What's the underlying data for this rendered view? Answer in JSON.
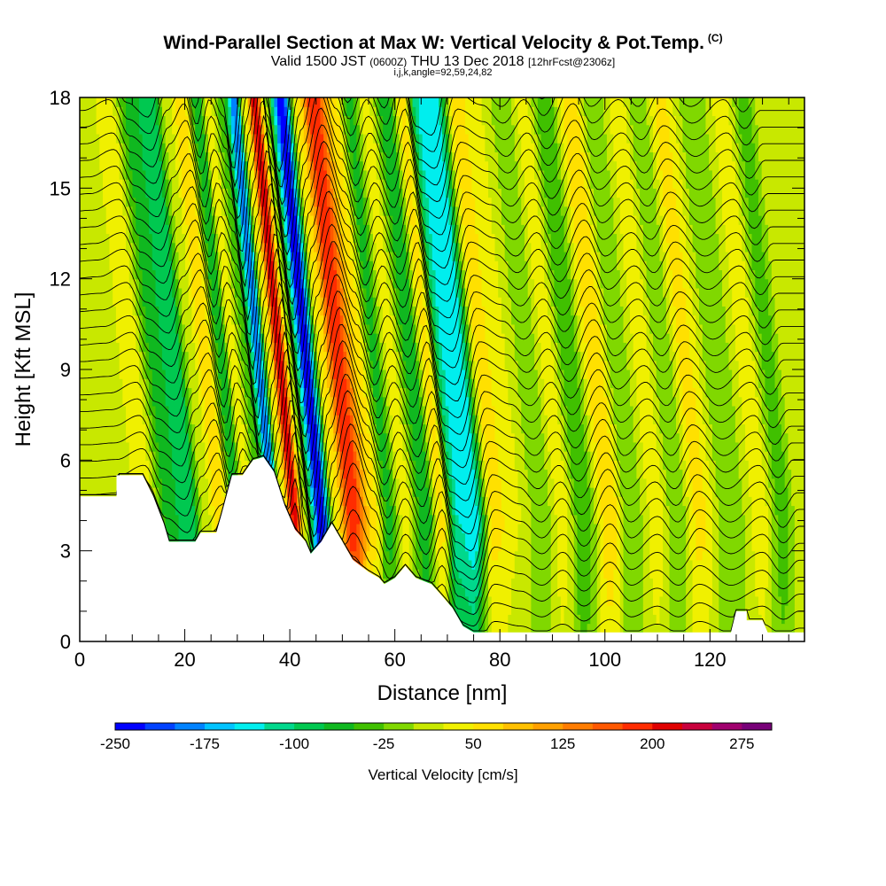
{
  "header": {
    "title": "Wind-Parallel Section at Max W: Vertical Velocity & Pot.Temp.",
    "copyright_mark": "(C)",
    "valid_prefix": "Valid 1500 JST",
    "valid_utc": "(0600Z)",
    "valid_date": "THU 13 Dec 2018",
    "forecast_info": "[12hrFcst@2306z]",
    "ijk_line": "i,j,k,angle=92,59,24,82"
  },
  "chart_data": {
    "type": "heatmap",
    "xlabel": "Distance [nm]",
    "ylabel": "Height [Kft MSL]",
    "xlim": [
      0,
      138
    ],
    "ylim": [
      0,
      18
    ],
    "x_ticks": [
      0,
      20,
      40,
      60,
      80,
      100,
      120
    ],
    "y_ticks": [
      0,
      3,
      6,
      9,
      12,
      15,
      18
    ],
    "colorbar": {
      "title": "Vertical Velocity [cm/s]",
      "min": -250,
      "max": 300,
      "step": 25,
      "labels": [
        "-250",
        "-175",
        "-100",
        "-25",
        "50",
        "125",
        "200",
        "275"
      ],
      "colors": [
        "#0000ff",
        "#0041ff",
        "#0082ff",
        "#00c3ff",
        "#00eeee",
        "#00d88c",
        "#00c850",
        "#10b820",
        "#40c000",
        "#80d800",
        "#c8e800",
        "#f0f000",
        "#ffe000",
        "#ffc000",
        "#ffa000",
        "#ff7c00",
        "#ff5800",
        "#ff2c00",
        "#e00000",
        "#c8003c",
        "#a0006e",
        "#780078"
      ]
    },
    "vertical_velocity_columns": [
      {
        "x": 3,
        "w": 5
      },
      {
        "x": 8,
        "w": 10
      },
      {
        "x": 13,
        "w": 40
      },
      {
        "x": 17,
        "w": -60
      },
      {
        "x": 21,
        "w": -100
      },
      {
        "x": 24,
        "w": 10
      },
      {
        "x": 27,
        "w": 75
      },
      {
        "x": 30,
        "w": -75
      },
      {
        "x": 32,
        "w": 40
      },
      {
        "x": 35,
        "w": -50
      },
      {
        "x": 37,
        "w": -200
      },
      {
        "x": 39,
        "w": 40
      },
      {
        "x": 41,
        "w": 225
      },
      {
        "x": 43,
        "w": 0
      },
      {
        "x": 46,
        "w": -250
      },
      {
        "x": 49,
        "w": 50
      },
      {
        "x": 52,
        "w": 200
      },
      {
        "x": 56,
        "w": 60
      },
      {
        "x": 59,
        "w": -60
      },
      {
        "x": 62,
        "w": 40
      },
      {
        "x": 66,
        "w": -75
      },
      {
        "x": 69,
        "w": 60
      },
      {
        "x": 72,
        "w": -125
      },
      {
        "x": 75,
        "w": -150
      },
      {
        "x": 79,
        "w": 60
      },
      {
        "x": 84,
        "w": 25
      },
      {
        "x": 88,
        "w": -25
      },
      {
        "x": 92,
        "w": 40
      },
      {
        "x": 96,
        "w": -50
      },
      {
        "x": 101,
        "w": 75
      },
      {
        "x": 105,
        "w": -25
      },
      {
        "x": 110,
        "w": 40
      },
      {
        "x": 114,
        "w": -25
      },
      {
        "x": 118,
        "w": 60
      },
      {
        "x": 124,
        "w": -25
      },
      {
        "x": 130,
        "w": 40
      },
      {
        "x": 134,
        "w": -40
      },
      {
        "x": 137,
        "w": 10
      }
    ],
    "terrain_height_kft": [
      {
        "x": 0,
        "h": 4.8
      },
      {
        "x": 7,
        "h": 4.8
      },
      {
        "x": 7,
        "h": 5.5
      },
      {
        "x": 12,
        "h": 5.5
      },
      {
        "x": 14,
        "h": 4.8
      },
      {
        "x": 16,
        "h": 3.9
      },
      {
        "x": 17,
        "h": 3.3
      },
      {
        "x": 22,
        "h": 3.3
      },
      {
        "x": 23,
        "h": 3.6
      },
      {
        "x": 26,
        "h": 3.6
      },
      {
        "x": 27,
        "h": 4.2
      },
      {
        "x": 29,
        "h": 5.5
      },
      {
        "x": 31,
        "h": 5.5
      },
      {
        "x": 33,
        "h": 6.0
      },
      {
        "x": 35,
        "h": 6.1
      },
      {
        "x": 37,
        "h": 5.6
      },
      {
        "x": 39,
        "h": 4.5
      },
      {
        "x": 41,
        "h": 3.7
      },
      {
        "x": 43,
        "h": 3.3
      },
      {
        "x": 44,
        "h": 2.9
      },
      {
        "x": 46,
        "h": 3.3
      },
      {
        "x": 48,
        "h": 3.9
      },
      {
        "x": 50,
        "h": 3.3
      },
      {
        "x": 52,
        "h": 2.7
      },
      {
        "x": 55,
        "h": 2.3
      },
      {
        "x": 57,
        "h": 2.1
      },
      {
        "x": 58,
        "h": 1.9
      },
      {
        "x": 60,
        "h": 2.1
      },
      {
        "x": 62,
        "h": 2.5
      },
      {
        "x": 64,
        "h": 2.1
      },
      {
        "x": 67,
        "h": 1.9
      },
      {
        "x": 69,
        "h": 1.5
      },
      {
        "x": 71,
        "h": 1.1
      },
      {
        "x": 73,
        "h": 0.5
      },
      {
        "x": 75,
        "h": 0.3
      },
      {
        "x": 124,
        "h": 0.3
      },
      {
        "x": 125,
        "h": 1.0
      },
      {
        "x": 127,
        "h": 1.0
      },
      {
        "x": 127,
        "h": 0.7
      },
      {
        "x": 130,
        "h": 0.7
      },
      {
        "x": 131,
        "h": 0.3
      },
      {
        "x": 138,
        "h": 0.3
      }
    ]
  }
}
